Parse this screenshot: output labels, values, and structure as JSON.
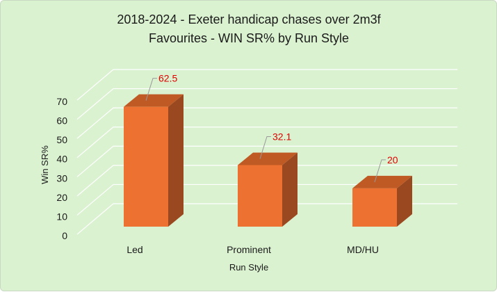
{
  "chart_data": {
    "type": "bar",
    "title_lines": [
      "2018-2024 - Exeter handicap chases over 2m3f",
      "Favourites - WIN SR% by Run Style"
    ],
    "xlabel": "Run Style",
    "ylabel": "Win SR%",
    "categories": [
      "Led",
      "Prominent",
      "MD/HU"
    ],
    "values": [
      62.5,
      32.1,
      20
    ],
    "data_labels": [
      "62.5",
      "32.1",
      "20"
    ],
    "ylim": [
      0,
      70
    ],
    "yticks": [
      "0",
      "10",
      "20",
      "30",
      "40",
      "50",
      "60",
      "70"
    ],
    "grid": true,
    "style": "3d-column",
    "colors": {
      "bar_front": "#ed7131",
      "bar_top": "#bf5a24",
      "bar_side": "#9a4820",
      "background": "#daf2d0",
      "grid": "#ffffff",
      "data_label": "#e00000"
    }
  }
}
